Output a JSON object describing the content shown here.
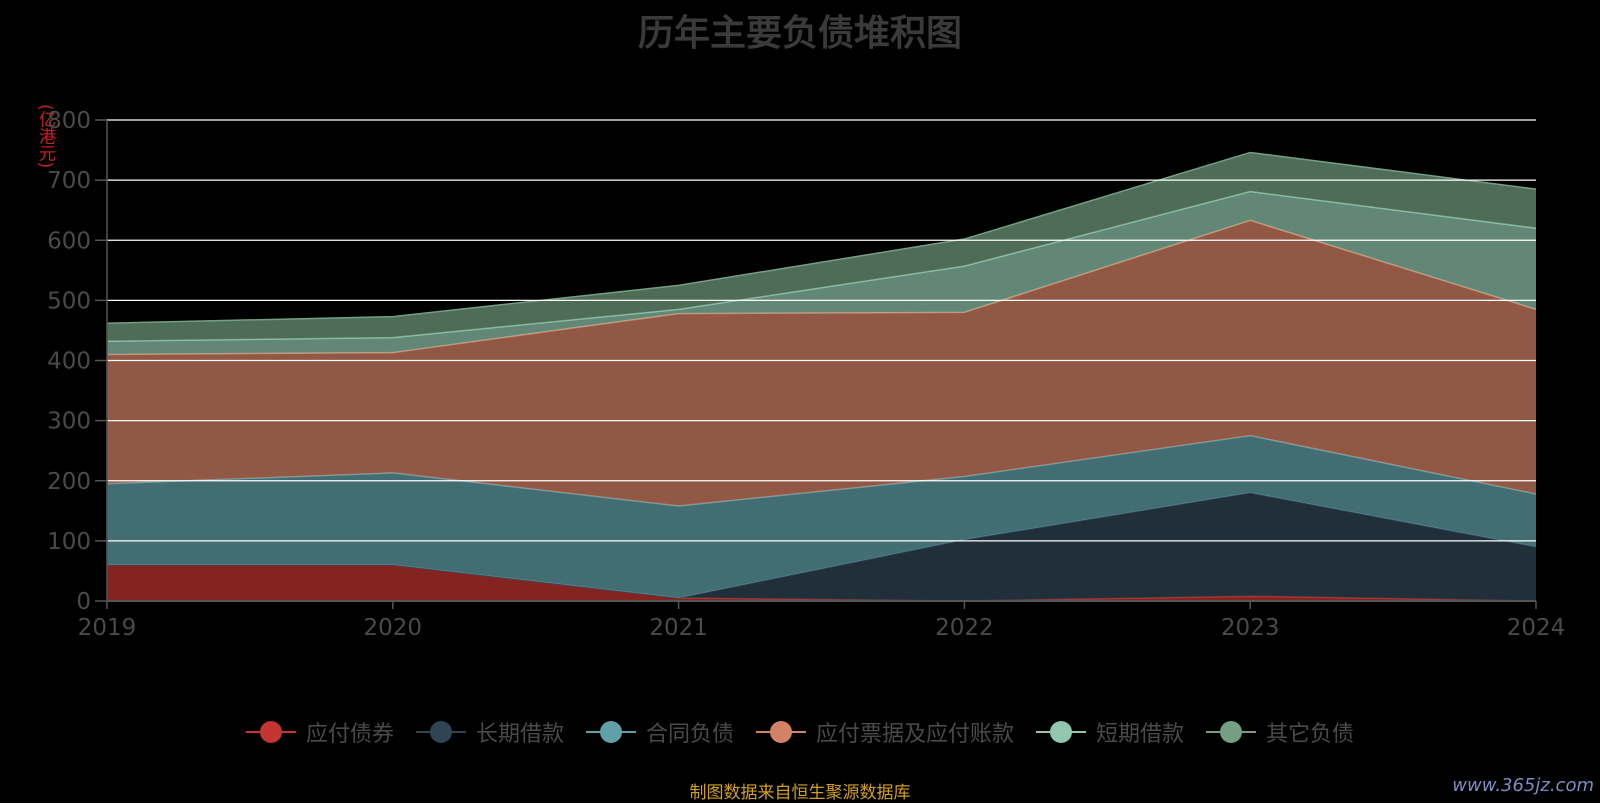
{
  "chart_data": {
    "type": "area",
    "stacked": true,
    "title": "历年主要负债堆积图",
    "ylabel": "(亿港元)",
    "x": [
      "2019",
      "2020",
      "2021",
      "2022",
      "2023",
      "2024"
    ],
    "ylim": [
      0,
      800
    ],
    "yticks": [
      "0",
      "100",
      "200",
      "300",
      "400",
      "500",
      "600",
      "700",
      "800"
    ],
    "grid": true,
    "legend_position": "bottom",
    "series": [
      {
        "name": "应付债券",
        "color": "#c23531",
        "values": [
          60,
          60,
          5,
          0,
          8,
          0
        ]
      },
      {
        "name": "长期借款",
        "color": "#2f4554",
        "values": [
          0,
          0,
          0,
          102,
          172,
          90
        ]
      },
      {
        "name": "合同负债",
        "color": "#61a0a8",
        "values": [
          135,
          153,
          153,
          105,
          95,
          88
        ]
      },
      {
        "name": "应付票据及应付账款",
        "color": "#d48265",
        "values": [
          215,
          200,
          320,
          273,
          358,
          307
        ]
      },
      {
        "name": "短期借款",
        "color": "#91c7ae",
        "values": [
          22,
          25,
          7,
          77,
          48,
          135
        ]
      },
      {
        "name": "其它负债",
        "color": "#749f83",
        "values": [
          30,
          35,
          40,
          45,
          65,
          65
        ]
      }
    ]
  },
  "footer": {
    "source": "制图数据来自恒生聚源数据库",
    "watermark": "www.365jz.com"
  }
}
